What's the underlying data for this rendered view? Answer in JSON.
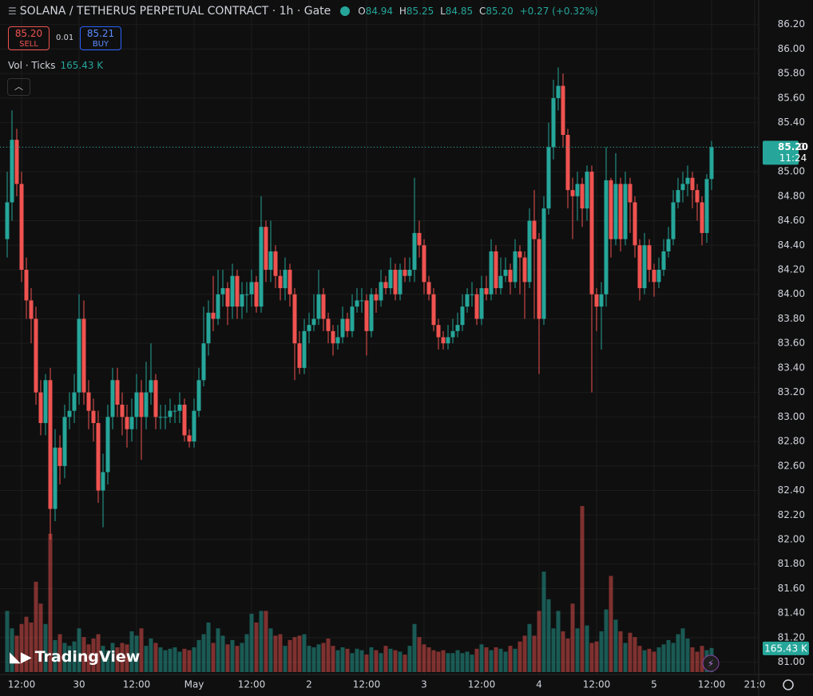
{
  "header": {
    "symbol": "SOLANA / TETHERUS PERPETUAL CONTRACT · 1h · Gate",
    "o_label": "O",
    "o": "84.94",
    "h_label": "H",
    "h": "85.25",
    "l_label": "L",
    "l": "84.85",
    "c_label": "C",
    "c": "85.20",
    "change": "+0.27 (+0.32%)"
  },
  "trade": {
    "sell_price": "85.20",
    "sell": "SELL",
    "spread": "0.01",
    "buy_price": "85.21",
    "buy": "BUY"
  },
  "indicator": {
    "name": "Vol · Ticks",
    "value": "165.43 K"
  },
  "logo": "TradingView",
  "chart_data": {
    "type": "candlestick",
    "up_color": "#26a69a",
    "down_color": "#ef5350",
    "grid": true,
    "price_badge": {
      "price": "85.20",
      "countdown": "11:24"
    },
    "volume_badge": "165.43 K",
    "ylim": [
      80.9,
      86.4
    ],
    "yticks": [
      {
        "value": 81.0,
        "label": "81.00"
      },
      {
        "value": 81.2,
        "label": "81.20"
      },
      {
        "value": 81.4,
        "label": "81.40"
      },
      {
        "value": 81.6,
        "label": "81.60"
      },
      {
        "value": 81.8,
        "label": "81.80"
      },
      {
        "value": 82.0,
        "label": "82.00"
      },
      {
        "value": 82.2,
        "label": "82.20"
      },
      {
        "value": 82.4,
        "label": "82.40"
      },
      {
        "value": 82.6,
        "label": "82.60"
      },
      {
        "value": 82.8,
        "label": "82.80"
      },
      {
        "value": 83.0,
        "label": "83.00"
      },
      {
        "value": 83.2,
        "label": "83.20"
      },
      {
        "value": 83.4,
        "label": "83.40"
      },
      {
        "value": 83.6,
        "label": "83.60"
      },
      {
        "value": 83.8,
        "label": "83.80"
      },
      {
        "value": 84.0,
        "label": "84.00"
      },
      {
        "value": 84.2,
        "label": "84.20"
      },
      {
        "value": 84.4,
        "label": "84.40"
      },
      {
        "value": 84.6,
        "label": "84.60"
      },
      {
        "value": 84.8,
        "label": "84.80"
      },
      {
        "value": 85.0,
        "label": "85.00"
      },
      {
        "value": 85.2,
        "label": "85.20"
      },
      {
        "value": 85.4,
        "label": "85.40"
      },
      {
        "value": 85.6,
        "label": "85.60"
      },
      {
        "value": 85.8,
        "label": "85.80"
      },
      {
        "value": 86.0,
        "label": "86.00"
      },
      {
        "value": 86.2,
        "label": "86.20"
      }
    ],
    "xticks": [
      {
        "value": 3,
        "label": "12:00"
      },
      {
        "value": 15,
        "label": "30"
      },
      {
        "value": 27,
        "label": "12:00"
      },
      {
        "value": 39,
        "label": "May"
      },
      {
        "value": 51,
        "label": "12:00"
      },
      {
        "value": 63,
        "label": "2"
      },
      {
        "value": 75,
        "label": "12:00"
      },
      {
        "value": 87,
        "label": "3"
      },
      {
        "value": 99,
        "label": "12:00"
      },
      {
        "value": 111,
        "label": "4"
      },
      {
        "value": 123,
        "label": "12:00"
      },
      {
        "value": 135,
        "label": "5"
      },
      {
        "value": 147,
        "label": "12:00"
      },
      {
        "value": 156,
        "label": "21:0"
      }
    ],
    "open": [
      84.45,
      84.75,
      85.26,
      84.9,
      84.2,
      83.95,
      83.8,
      83.2,
      82.95,
      83.3,
      82.25,
      82.75,
      82.6,
      83.0,
      83.05,
      83.2,
      83.8,
      83.2,
      83.05,
      82.95,
      82.4,
      82.55,
      83.0,
      83.3,
      83.1,
      83.0,
      82.9,
      83.0,
      83.2,
      83.0,
      83.2,
      83.3,
      83.0,
      83.0,
      83.0,
      83.05,
      83.05,
      83.1,
      82.85,
      82.8,
      83.05,
      83.3,
      83.6,
      83.85,
      83.8,
      84.0,
      84.05,
      83.9,
      84.15,
      83.9,
      84.0,
      84.0,
      84.1,
      83.9,
      84.55,
      84.2,
      84.35,
      84.15,
      84.05,
      84.2,
      84.0,
      83.6,
      83.4,
      83.7,
      83.75,
      83.8,
      84.0,
      83.8,
      83.7,
      83.6,
      83.65,
      83.8,
      83.7,
      83.9,
      83.95,
      83.95,
      83.7,
      84.0,
      83.95,
      84.1,
      84.05,
      84.2,
      84.0,
      84.2,
      84.15,
      84.2,
      84.5,
      84.4,
      84.1,
      84.0,
      83.75,
      83.65,
      83.6,
      83.65,
      83.7,
      83.75,
      83.9,
      84.0,
      84.0,
      83.8,
      84.05,
      84.0,
      84.35,
      84.05,
      84.15,
      84.2,
      84.1,
      84.35,
      84.3,
      84.1,
      84.6,
      84.45,
      83.8,
      84.7,
      85.2,
      85.6,
      85.7,
      85.3,
      84.85,
      84.8,
      84.9,
      84.7,
      85.0,
      84.0,
      83.9,
      84.0,
      84.93,
      84.45,
      84.9,
      84.45,
      84.9,
      84.75,
      84.4,
      84.05,
      84.4,
      84.2,
      84.1,
      84.2,
      84.35,
      84.45,
      84.75,
      84.85,
      84.9,
      84.95,
      84.85,
      84.75,
      84.5,
      84.94
    ],
    "high": [
      85.0,
      85.5,
      85.35,
      85.0,
      84.3,
      84.05,
      83.9,
      83.3,
      83.35,
      83.4,
      82.9,
      82.85,
      83.1,
      83.2,
      83.35,
      84.0,
      83.95,
      83.3,
      83.15,
      83.05,
      82.7,
      83.1,
      83.4,
      83.4,
      83.2,
      83.1,
      83.15,
      83.35,
      83.3,
      83.45,
      83.6,
      83.35,
      83.1,
      83.1,
      83.15,
      83.1,
      83.2,
      83.15,
      82.9,
      83.15,
      83.4,
      83.9,
      83.95,
      84.15,
      84.2,
      84.2,
      84.1,
      84.25,
      84.2,
      84.1,
      84.1,
      84.2,
      84.15,
      84.8,
      84.6,
      84.6,
      84.4,
      84.2,
      84.3,
      84.25,
      84.05,
      83.7,
      83.8,
      83.85,
      84.0,
      84.2,
      84.05,
      83.85,
      83.75,
      83.75,
      83.9,
      83.85,
      84.0,
      84.05,
      84.05,
      84.0,
      84.05,
      84.05,
      84.2,
      84.15,
      84.3,
      84.25,
      84.25,
      84.3,
      84.3,
      84.95,
      84.6,
      84.45,
      84.15,
      84.05,
      83.8,
      83.7,
      83.75,
      83.8,
      83.85,
      84.0,
      84.05,
      84.1,
      84.05,
      84.15,
      84.15,
      84.45,
      84.4,
      84.3,
      84.3,
      84.25,
      84.45,
      84.4,
      84.35,
      84.7,
      84.85,
      84.5,
      84.8,
      85.4,
      85.75,
      85.85,
      85.8,
      85.35,
      84.95,
      85.0,
      84.95,
      85.05,
      85.05,
      84.05,
      84.1,
      85.2,
      84.95,
      85.15,
      84.95,
      85.0,
      84.95,
      84.8,
      84.45,
      84.5,
      84.45,
      84.25,
      84.3,
      84.45,
      84.55,
      84.85,
      84.95,
      85.0,
      85.05,
      85.0,
      84.9,
      84.8,
      84.98,
      85.25
    ],
    "low": [
      84.3,
      84.6,
      84.8,
      84.1,
      83.8,
      83.6,
      83.1,
      82.85,
      82.85,
      82.0,
      82.15,
      82.45,
      82.5,
      82.9,
      82.95,
      83.1,
      83.1,
      82.9,
      82.8,
      82.3,
      82.1,
      82.45,
      82.9,
      83.0,
      82.85,
      82.75,
      82.8,
      82.9,
      82.65,
      82.9,
      83.1,
      82.9,
      82.9,
      82.9,
      82.95,
      82.95,
      82.95,
      82.8,
      82.75,
      82.75,
      83.0,
      83.25,
      83.5,
      83.7,
      83.75,
      83.9,
      83.75,
      83.8,
      83.8,
      83.8,
      83.85,
      83.9,
      83.85,
      83.85,
      84.1,
      84.1,
      84.05,
      83.95,
      83.95,
      83.9,
      83.3,
      83.35,
      83.35,
      83.6,
      83.7,
      83.75,
      83.7,
      83.6,
      83.5,
      83.55,
      83.6,
      83.65,
      83.65,
      83.85,
      83.85,
      83.5,
      83.65,
      83.85,
      83.9,
      84.0,
      84.0,
      83.95,
      83.95,
      84.1,
      84.1,
      84.1,
      84.3,
      84.0,
      83.95,
      83.7,
      83.55,
      83.55,
      83.55,
      83.6,
      83.65,
      83.7,
      83.85,
      83.9,
      83.75,
      83.75,
      83.95,
      83.95,
      84.0,
      84.0,
      84.1,
      84.0,
      84.05,
      84.0,
      83.8,
      84.05,
      83.8,
      83.35,
      83.75,
      84.65,
      85.1,
      85.5,
      85.2,
      84.7,
      84.45,
      84.6,
      84.55,
      84.6,
      83.2,
      83.7,
      83.55,
      83.9,
      84.3,
      84.4,
      84.35,
      84.4,
      84.5,
      84.3,
      83.95,
      84.0,
      84.1,
      83.98,
      84.05,
      84.15,
      84.3,
      84.4,
      84.7,
      84.75,
      84.8,
      84.7,
      84.6,
      84.4,
      84.42,
      84.85
    ],
    "close": [
      84.75,
      85.26,
      84.9,
      84.2,
      83.95,
      83.8,
      83.2,
      82.95,
      83.3,
      82.25,
      82.75,
      82.6,
      83.0,
      83.05,
      83.2,
      83.8,
      83.2,
      83.05,
      82.95,
      82.4,
      82.55,
      83.0,
      83.3,
      83.1,
      83.0,
      82.9,
      83.0,
      83.2,
      83.0,
      83.2,
      83.3,
      83.0,
      83.0,
      83.0,
      83.05,
      83.05,
      83.1,
      82.85,
      82.8,
      83.05,
      83.3,
      83.6,
      83.85,
      83.8,
      84.0,
      84.05,
      83.9,
      84.15,
      83.9,
      84.0,
      84.0,
      84.1,
      83.9,
      84.55,
      84.2,
      84.35,
      84.15,
      84.05,
      84.2,
      84.0,
      83.6,
      83.4,
      83.7,
      83.75,
      83.8,
      84.0,
      83.8,
      83.7,
      83.6,
      83.65,
      83.8,
      83.7,
      83.9,
      83.95,
      83.95,
      83.7,
      84.0,
      83.95,
      84.1,
      84.05,
      84.2,
      84.0,
      84.2,
      84.15,
      84.2,
      84.5,
      84.4,
      84.1,
      84.0,
      83.75,
      83.65,
      83.6,
      83.65,
      83.7,
      83.75,
      83.9,
      84.0,
      84.0,
      83.8,
      84.05,
      84.0,
      84.35,
      84.05,
      84.15,
      84.2,
      84.1,
      84.35,
      84.3,
      84.1,
      84.6,
      84.45,
      83.8,
      84.7,
      85.2,
      85.6,
      85.7,
      85.3,
      84.85,
      84.8,
      84.9,
      84.7,
      85.0,
      84.0,
      83.9,
      84.0,
      84.93,
      84.45,
      84.9,
      84.45,
      84.9,
      84.75,
      84.4,
      84.05,
      84.4,
      84.2,
      84.1,
      84.2,
      84.35,
      84.45,
      84.75,
      84.85,
      84.9,
      84.95,
      84.85,
      84.75,
      84.5,
      84.94,
      85.2
    ],
    "volume": [
      420,
      300,
      250,
      330,
      380,
      340,
      620,
      470,
      330,
      950,
      220,
      260,
      200,
      180,
      210,
      300,
      240,
      190,
      230,
      260,
      180,
      150,
      200,
      170,
      200,
      190,
      280,
      250,
      300,
      180,
      230,
      200,
      170,
      150,
      160,
      170,
      140,
      160,
      150,
      170,
      220,
      260,
      340,
      200,
      300,
      250,
      190,
      220,
      180,
      200,
      260,
      400,
      340,
      420,
      420,
      300,
      250,
      260,
      180,
      220,
      240,
      250,
      260,
      180,
      170,
      190,
      200,
      230,
      180,
      150,
      170,
      160,
      130,
      160,
      150,
      120,
      170,
      150,
      130,
      180,
      160,
      150,
      140,
      120,
      180,
      330,
      240,
      190,
      170,
      150,
      140,
      150,
      130,
      130,
      150,
      130,
      140,
      120,
      160,
      190,
      170,
      150,
      170,
      160,
      140,
      180,
      160,
      210,
      250,
      330,
      250,
      420,
      690,
      500,
      300,
      420,
      280,
      230,
      470,
      300,
      1140,
      320,
      200,
      210,
      280,
      430,
      660,
      360,
      280,
      200,
      270,
      240,
      180,
      150,
      160,
      140,
      170,
      190,
      220,
      200,
      260,
      300,
      230,
      170,
      140,
      180,
      150,
      165.43
    ]
  }
}
